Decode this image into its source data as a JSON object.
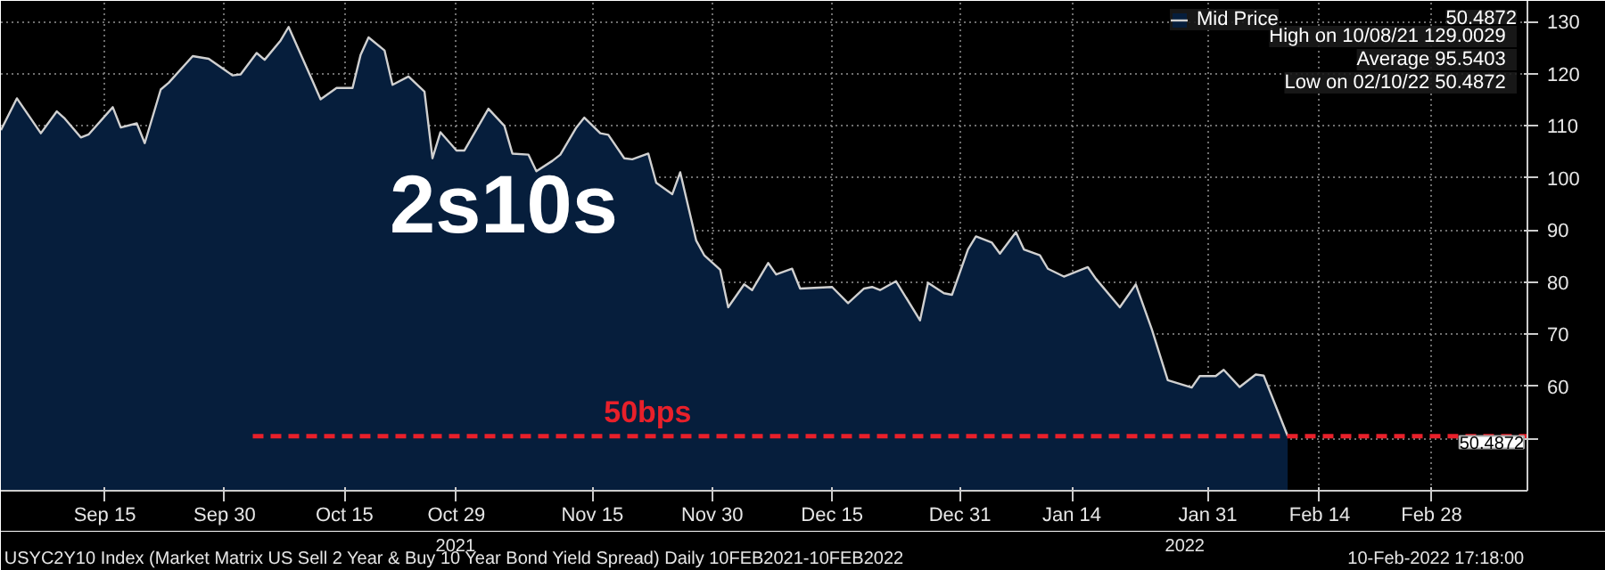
{
  "chart_data": {
    "type": "area",
    "title": "2s10s",
    "x": [
      "2021-09-02",
      "2021-09-04",
      "2021-09-07",
      "2021-09-09",
      "2021-09-10",
      "2021-09-12",
      "2021-09-13",
      "2021-09-16",
      "2021-09-17",
      "2021-09-19",
      "2021-09-20",
      "2021-09-22",
      "2021-09-23",
      "2021-09-26",
      "2021-09-28",
      "2021-10-01",
      "2021-10-02",
      "2021-10-04",
      "2021-10-05",
      "2021-10-07",
      "2021-10-08",
      "2021-10-11",
      "2021-10-12",
      "2021-10-14",
      "2021-10-16",
      "2021-10-17",
      "2021-10-18",
      "2021-10-20",
      "2021-10-21",
      "2021-10-23",
      "2021-10-25",
      "2021-10-26",
      "2021-10-27",
      "2021-10-29",
      "2021-10-30",
      "2021-11-02",
      "2021-11-04",
      "2021-11-05",
      "2021-11-07",
      "2021-11-08",
      "2021-11-10",
      "2021-11-11",
      "2021-11-13",
      "2021-11-14",
      "2021-11-16",
      "2021-11-17",
      "2021-11-19",
      "2021-11-20",
      "2021-11-22",
      "2021-11-23",
      "2021-11-25",
      "2021-11-26",
      "2021-11-28",
      "2021-11-29",
      "2021-12-01",
      "2021-12-02",
      "2021-12-04",
      "2021-12-05",
      "2021-12-07",
      "2021-12-08",
      "2021-12-10",
      "2021-12-11",
      "2021-12-15",
      "2021-12-17",
      "2021-12-19",
      "2021-12-20",
      "2021-12-21",
      "2021-12-23",
      "2021-12-26",
      "2021-12-27",
      "2021-12-29",
      "2021-12-30",
      "2022-01-01",
      "2022-01-02",
      "2022-01-04",
      "2022-01-05",
      "2022-01-07",
      "2022-01-08",
      "2022-01-10",
      "2022-01-11",
      "2022-01-13",
      "2022-01-16",
      "2022-01-17",
      "2022-01-20",
      "2022-01-22",
      "2022-01-24",
      "2022-01-26",
      "2022-01-29",
      "2022-01-30",
      "2022-02-01",
      "2022-02-02",
      "2022-02-04",
      "2022-02-06",
      "2022-02-07",
      "2022-02-10"
    ],
    "series": [
      {
        "name": "Mid Price",
        "color": "#061e3c",
        "values": [
          109.2,
          115.3,
          108.6,
          112.8,
          111.4,
          107.8,
          108.4,
          113.6,
          109.7,
          110.5,
          106.7,
          117.0,
          118.3,
          123.4,
          122.9,
          119.7,
          119.9,
          124.0,
          122.7,
          126.4,
          129.0,
          118.6,
          115.1,
          117.3,
          117.3,
          123.6,
          127.0,
          124.5,
          117.9,
          119.5,
          116.6,
          103.8,
          108.8,
          105.3,
          105.3,
          113.3,
          110.0,
          104.7,
          104.5,
          101.3,
          103.3,
          104.5,
          109.7,
          111.6,
          108.6,
          108.3,
          103.8,
          103.6,
          104.7,
          99.1,
          96.9,
          101.1,
          88.0,
          85.2,
          82.4,
          75.2,
          79.6,
          78.5,
          83.7,
          81.5,
          82.6,
          78.8,
          79.1,
          76.0,
          78.8,
          79.1,
          78.5,
          80.2,
          72.7,
          79.9,
          77.9,
          77.6,
          86.3,
          88.8,
          87.6,
          85.5,
          89.6,
          86.3,
          85.2,
          82.6,
          81.1,
          82.9,
          80.7,
          75.2,
          79.6,
          71.0,
          61.2,
          59.8,
          62.0,
          62.0,
          63.2,
          59.9,
          62.3,
          62.1,
          50.5
        ]
      }
    ],
    "xlim": [
      "2021-09-02",
      "2022-03-12"
    ],
    "xticks": [
      {
        "value": "2021-09-15",
        "label": "Sep 15"
      },
      {
        "value": "2021-09-30",
        "label": "Sep 30"
      },
      {
        "value": "2021-10-15",
        "label": "Oct 15"
      },
      {
        "value": "2021-10-29",
        "label": "Oct 29"
      },
      {
        "value": "2021-11-15",
        "label": "Nov 15"
      },
      {
        "value": "2021-11-30",
        "label": "Nov 30"
      },
      {
        "value": "2021-12-15",
        "label": "Dec 15"
      },
      {
        "value": "2021-12-31",
        "label": "Dec 31"
      },
      {
        "value": "2022-01-14",
        "label": "Jan 14"
      },
      {
        "value": "2022-01-31",
        "label": "Jan 31"
      },
      {
        "value": "2022-02-14",
        "label": "Feb 14"
      },
      {
        "value": "2022-02-28",
        "label": "Feb 28"
      }
    ],
    "ylim": [
      40,
      134
    ],
    "yticks": [
      {
        "value": 50,
        "label": null
      },
      60,
      70,
      80,
      90,
      100,
      110,
      120,
      130
    ],
    "grid": true,
    "legend": "top right",
    "ref_lines": [
      {
        "axis": "y",
        "value": 50.4872,
        "label": "50bps",
        "color": "#e8202a",
        "line_style": "dashed"
      }
    ],
    "annotations": [
      "50.4872",
      "High on 10/08/21   129.0029",
      "Average   95.5403",
      "Low on 02/10/22   50.4872",
      "50.4872",
      "2021",
      "2022",
      "USYC2Y10 Index (Market Matrix US Sell 2 Year & Buy 10 Year Bond Yield Spread)  Daily 10FEB2021-10FEB2022",
      "10-Feb-2022 17:18:00"
    ]
  }
}
